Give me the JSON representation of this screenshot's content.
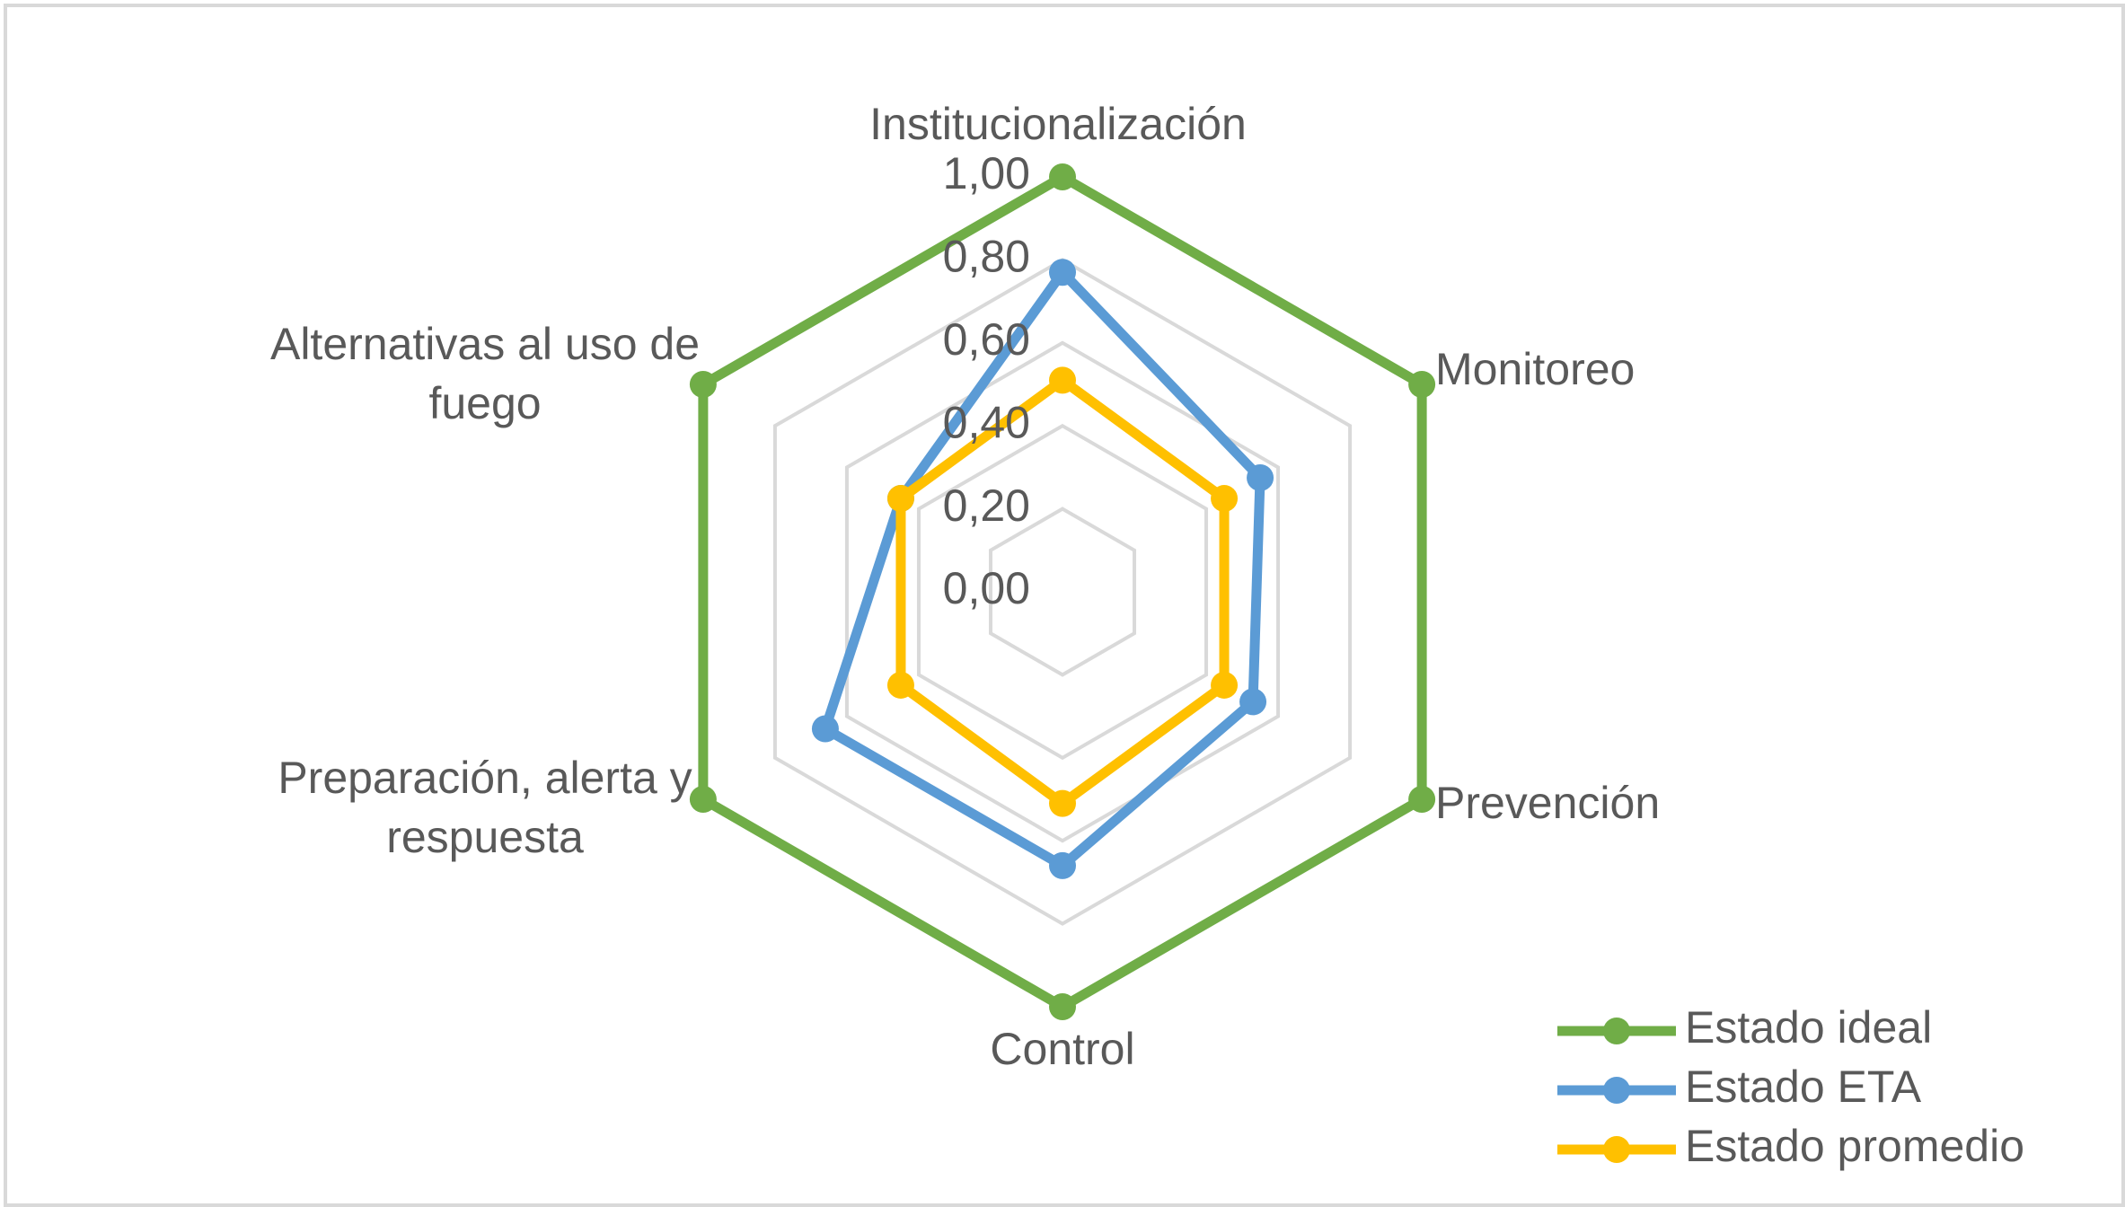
{
  "chart_data": {
    "type": "radar",
    "categories": [
      "Institucionalización",
      "Monitoreo",
      "Prevención",
      "Control",
      "Preparación, alerta y respuesta",
      "Alternativas al uso de fuego"
    ],
    "category_lines": [
      [
        "Institucionalización"
      ],
      [
        "Monitoreo"
      ],
      [
        "Prevención"
      ],
      [
        "Control"
      ],
      [
        "Preparación, alerta y",
        "respuesta"
      ],
      [
        "Alternativas al uso de",
        "fuego"
      ]
    ],
    "ticks": [
      "0,00",
      "0,20",
      "0,40",
      "0,60",
      "0,80",
      "1,00"
    ],
    "tick_values": [
      0,
      0.2,
      0.4,
      0.6,
      0.8,
      1.0
    ],
    "rlim": [
      0,
      1
    ],
    "grid": true,
    "legend_position": "bottom-right",
    "series": [
      {
        "name": "Estado ideal",
        "color": "#70ad47",
        "values": [
          1.0,
          1.0,
          1.0,
          1.0,
          1.0,
          1.0
        ]
      },
      {
        "name": "Estado ETA",
        "color": "#5b9bd5",
        "values": [
          0.77,
          0.55,
          0.53,
          0.66,
          0.66,
          0.45
        ]
      },
      {
        "name": "Estado promedio",
        "color": "#ffc000",
        "values": [
          0.51,
          0.45,
          0.45,
          0.51,
          0.45,
          0.45
        ]
      }
    ]
  }
}
